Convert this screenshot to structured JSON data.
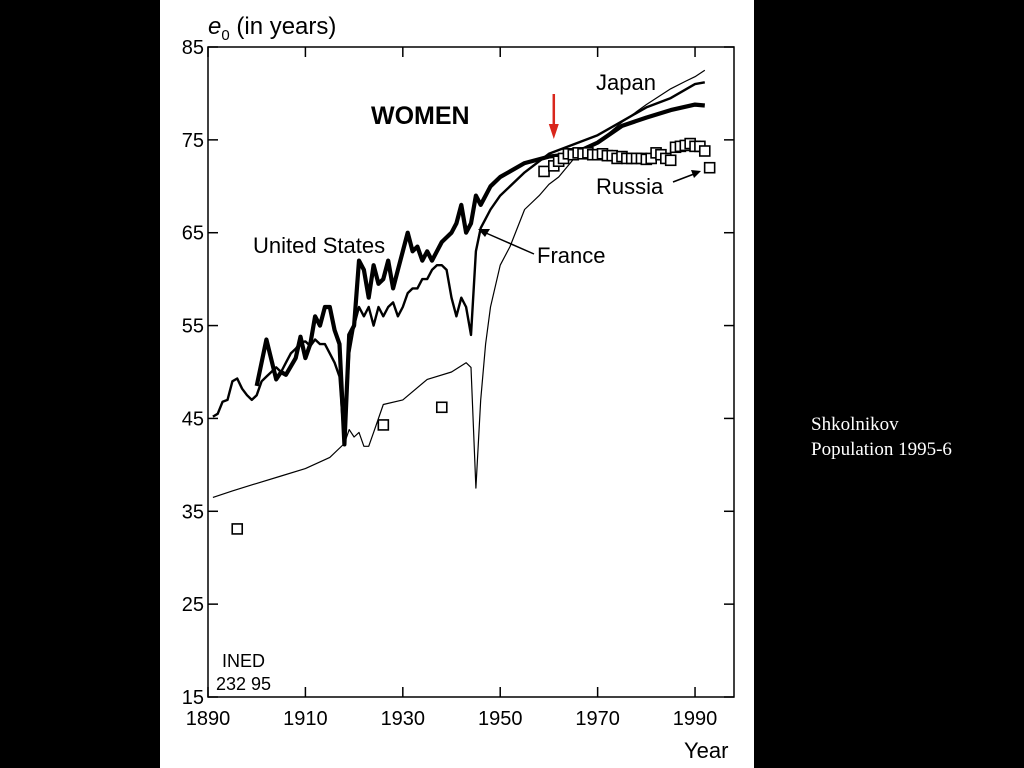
{
  "caption": {
    "line1": "Shkolnikov",
    "line2": "Population 1995-6"
  },
  "chart_data": {
    "type": "line",
    "title": "WOMEN",
    "ylabel_symbol": "e",
    "ylabel_subscript": "0",
    "ylabel_text": " (in years)",
    "xlabel": "Year",
    "xlim": [
      1890,
      1998
    ],
    "ylim": [
      15,
      85
    ],
    "xticks": [
      1890,
      1910,
      1930,
      1950,
      1970,
      1990
    ],
    "yticks": [
      15,
      25,
      35,
      45,
      55,
      65,
      75,
      85
    ],
    "annotation_source_line1": "INED",
    "annotation_source_line2": "232 95",
    "marker_arrow_year": 1961,
    "series": [
      {
        "name": "United States",
        "style": "thick",
        "x": [
          1900,
          1902,
          1904,
          1905,
          1906,
          1908,
          1909,
          1910,
          1911,
          1912,
          1913,
          1914,
          1915,
          1916,
          1917,
          1918,
          1919,
          1920,
          1921,
          1922,
          1923,
          1924,
          1925,
          1926,
          1927,
          1928,
          1929,
          1930,
          1931,
          1932,
          1933,
          1934,
          1935,
          1936,
          1937,
          1938,
          1939,
          1940,
          1941,
          1942,
          1943,
          1944,
          1945,
          1946,
          1947,
          1948,
          1950,
          1955,
          1960,
          1965,
          1970,
          1975,
          1980,
          1985,
          1990,
          1992
        ],
        "values": [
          48.5,
          53.5,
          49.2,
          50.0,
          49.7,
          51.5,
          53.8,
          51.5,
          53.0,
          56.0,
          55.0,
          57.0,
          57.0,
          54.5,
          53.0,
          42.2,
          54.0,
          55.0,
          62.0,
          61.0,
          58.0,
          61.5,
          59.5,
          60.0,
          62.0,
          59.0,
          61.0,
          63.0,
          65.0,
          63.0,
          63.5,
          62.0,
          63.0,
          62.0,
          63.0,
          64.0,
          64.5,
          65.0,
          66.0,
          68.0,
          65.0,
          66.0,
          69.0,
          68.0,
          69.0,
          70.0,
          71.0,
          72.5,
          73.2,
          73.5,
          74.7,
          76.5,
          77.4,
          78.2,
          78.8,
          78.7
        ]
      },
      {
        "name": "France",
        "style": "medium",
        "x": [
          1891,
          1892,
          1893,
          1894,
          1895,
          1896,
          1897,
          1898,
          1899,
          1900,
          1901,
          1902,
          1903,
          1904,
          1905,
          1906,
          1907,
          1908,
          1909,
          1910,
          1911,
          1912,
          1913,
          1914,
          1915,
          1916,
          1917,
          1918,
          1919,
          1920,
          1921,
          1922,
          1923,
          1924,
          1925,
          1926,
          1927,
          1928,
          1929,
          1930,
          1931,
          1932,
          1933,
          1934,
          1935,
          1936,
          1937,
          1938,
          1939,
          1940,
          1941,
          1942,
          1943,
          1944,
          1945,
          1946,
          1947,
          1948,
          1950,
          1955,
          1960,
          1965,
          1970,
          1975,
          1980,
          1985,
          1990,
          1992
        ],
        "values": [
          45.2,
          45.5,
          46.8,
          47.0,
          49.0,
          49.3,
          48.2,
          47.5,
          47.0,
          47.5,
          49.0,
          49.5,
          50.0,
          50.5,
          50.0,
          51.0,
          52.0,
          52.5,
          53.2,
          53.3,
          52.8,
          53.5,
          53.0,
          53.0,
          52.0,
          51.0,
          49.5,
          42.2,
          52.0,
          55.0,
          57.0,
          56.0,
          57.0,
          55.0,
          57.0,
          56.0,
          57.0,
          57.5,
          56.0,
          57.0,
          58.5,
          59.0,
          59.0,
          60.0,
          60.0,
          61.0,
          61.5,
          61.5,
          61.0,
          58.0,
          56.0,
          58.0,
          57.0,
          54.0,
          63.0,
          65.5,
          66.5,
          67.5,
          69.0,
          71.5,
          73.5,
          74.5,
          75.5,
          77.0,
          78.5,
          79.5,
          81.0,
          81.2
        ]
      },
      {
        "name": "Japan",
        "style": "thin",
        "x": [
          1891,
          1895,
          1900,
          1905,
          1910,
          1915,
          1918,
          1919,
          1920,
          1921,
          1922,
          1923,
          1924,
          1926,
          1930,
          1935,
          1940,
          1943,
          1944,
          1945,
          1946,
          1947,
          1948,
          1950,
          1952,
          1955,
          1958,
          1960,
          1962,
          1965,
          1970,
          1975,
          1980,
          1985,
          1988,
          1990,
          1992
        ],
        "values": [
          36.5,
          37.2,
          38.0,
          38.8,
          39.6,
          40.8,
          42.3,
          43.8,
          43.0,
          43.5,
          42.0,
          42.0,
          43.5,
          46.5,
          47.0,
          49.2,
          50.0,
          51.0,
          50.5,
          37.5,
          47.0,
          53.0,
          57.0,
          61.5,
          63.5,
          67.5,
          69.0,
          70.2,
          71.0,
          72.9,
          74.7,
          76.9,
          78.8,
          80.5,
          81.3,
          81.8,
          82.5
        ]
      },
      {
        "name": "Russia",
        "style": "squares",
        "x": [
          1896,
          1926,
          1938,
          1959,
          1961,
          1962,
          1963,
          1964,
          1965,
          1966,
          1967,
          1968,
          1969,
          1970,
          1971,
          1972,
          1973,
          1974,
          1975,
          1976,
          1977,
          1978,
          1979,
          1980,
          1981,
          1982,
          1983,
          1984,
          1985,
          1986,
          1987,
          1988,
          1989,
          1990,
          1991,
          1992,
          1993
        ],
        "values": [
          33.1,
          44.3,
          46.2,
          71.6,
          72.2,
          72.7,
          73.0,
          73.5,
          73.4,
          73.6,
          73.5,
          73.6,
          73.4,
          73.4,
          73.5,
          73.3,
          73.3,
          73.0,
          73.2,
          73.0,
          73.0,
          73.0,
          73.0,
          72.9,
          73.0,
          73.6,
          73.4,
          73.0,
          72.8,
          74.2,
          74.3,
          74.4,
          74.6,
          74.3,
          74.3,
          73.8,
          72.0
        ]
      }
    ],
    "series_labels": {
      "united_states": "United States",
      "france": "France",
      "japan": "Japan",
      "russia": "Russia"
    }
  }
}
